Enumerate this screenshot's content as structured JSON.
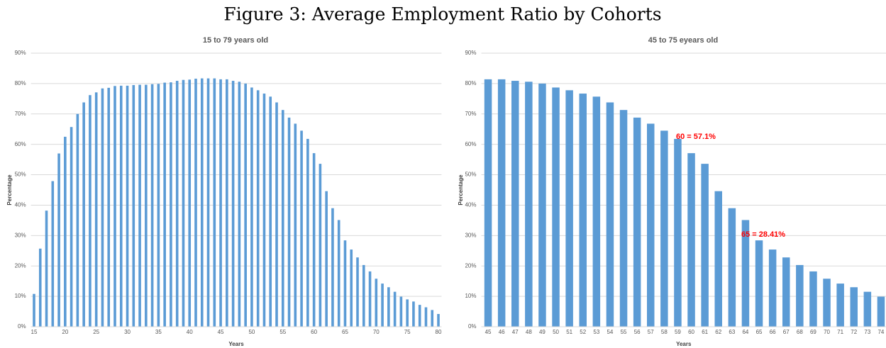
{
  "title": "Figure 3: Average Employment Ratio by Cohorts",
  "chart_data": [
    {
      "type": "bar",
      "title": "15 to 79 years old",
      "x_label": "Years",
      "y_label": "Percentage",
      "color": "#5b9bd5",
      "grid": true,
      "x": [
        15,
        16,
        17,
        18,
        19,
        20,
        21,
        22,
        23,
        24,
        25,
        26,
        27,
        28,
        29,
        30,
        31,
        32,
        33,
        34,
        35,
        36,
        37,
        38,
        39,
        40,
        41,
        42,
        43,
        44,
        45,
        46,
        47,
        48,
        49,
        50,
        51,
        52,
        53,
        54,
        55,
        56,
        57,
        58,
        59,
        60,
        61,
        62,
        63,
        64,
        65,
        66,
        67,
        68,
        69,
        70,
        71,
        72,
        73,
        74,
        75,
        76,
        77,
        78,
        79,
        80
      ],
      "values": [
        10.8,
        25.7,
        38.2,
        47.9,
        57,
        62.5,
        65.7,
        70,
        73.8,
        76.2,
        77.1,
        78.4,
        78.6,
        79.2,
        79.3,
        79.3,
        79.5,
        79.6,
        79.6,
        79.8,
        79.9,
        80.3,
        80.4,
        80.9,
        81.2,
        81.3,
        81.6,
        81.7,
        81.7,
        81.7,
        81.4,
        81.4,
        80.9,
        80.6,
        80,
        78.7,
        77.8,
        76.7,
        75.7,
        73.8,
        71.3,
        68.8,
        66.8,
        64.5,
        61.8,
        57.1,
        53.6,
        44.6,
        39,
        35.1,
        28.41,
        25.4,
        22.8,
        20.3,
        18.2,
        15.8,
        14.2,
        13,
        11.5,
        9.9,
        9,
        8.3,
        7.2,
        6.4,
        5.5,
        4.2
      ],
      "xlim": [
        14.5,
        80.5
      ],
      "xticks": [
        15,
        20,
        25,
        30,
        35,
        40,
        45,
        50,
        55,
        60,
        65,
        70,
        75,
        80
      ],
      "ylim": [
        0,
        90
      ],
      "yticks": [
        {
          "value": 0,
          "label": "0%"
        },
        {
          "value": 10,
          "label": "10%"
        },
        {
          "value": 20,
          "label": "20%"
        },
        {
          "value": 30,
          "label": "30%"
        },
        {
          "value": 40,
          "label": "40%"
        },
        {
          "value": 50,
          "label": "50%"
        },
        {
          "value": 60,
          "label": "60%"
        },
        {
          "value": 70,
          "label": "70%"
        },
        {
          "value": 80,
          "label": "80%"
        },
        {
          "value": 90,
          "label": "90%"
        }
      ]
    },
    {
      "type": "bar",
      "title": "45 to 75 eyears old",
      "x_label": "Years",
      "y_label": "Percentage",
      "color": "#5b9bd5",
      "grid": true,
      "categories": [
        "45",
        "46",
        "47",
        "48",
        "49",
        "50",
        "51",
        "52",
        "53",
        "54",
        "55",
        "56",
        "57",
        "58",
        "59",
        "60",
        "61",
        "62",
        "63",
        "64",
        "65",
        "66",
        "67",
        "68",
        "69",
        "70",
        "71",
        "72",
        "73",
        "74",
        "75"
      ],
      "values": [
        81.4,
        81.4,
        80.9,
        80.6,
        80,
        78.7,
        77.8,
        76.7,
        75.7,
        73.8,
        71.3,
        68.8,
        66.8,
        64.5,
        61.8,
        57.1,
        53.6,
        44.6,
        39,
        35.1,
        28.41,
        25.4,
        22.8,
        20.3,
        18.2,
        15.8,
        14.2,
        13,
        11.5,
        9.9,
        9
      ],
      "ylim": [
        0,
        90
      ],
      "yticks": [
        {
          "value": 0,
          "label": "0%"
        },
        {
          "value": 10,
          "label": "10%"
        },
        {
          "value": 20,
          "label": "20%"
        },
        {
          "value": 30,
          "label": "30%"
        },
        {
          "value": 40,
          "label": "40%"
        },
        {
          "value": 50,
          "label": "50%"
        },
        {
          "value": 60,
          "label": "60%"
        },
        {
          "value": 70,
          "label": "70%"
        },
        {
          "value": 80,
          "label": "80%"
        },
        {
          "value": 90,
          "label": "90%"
        }
      ],
      "annotations": [
        "60 = 57.1%",
        "65 = 28.41%"
      ]
    }
  ]
}
